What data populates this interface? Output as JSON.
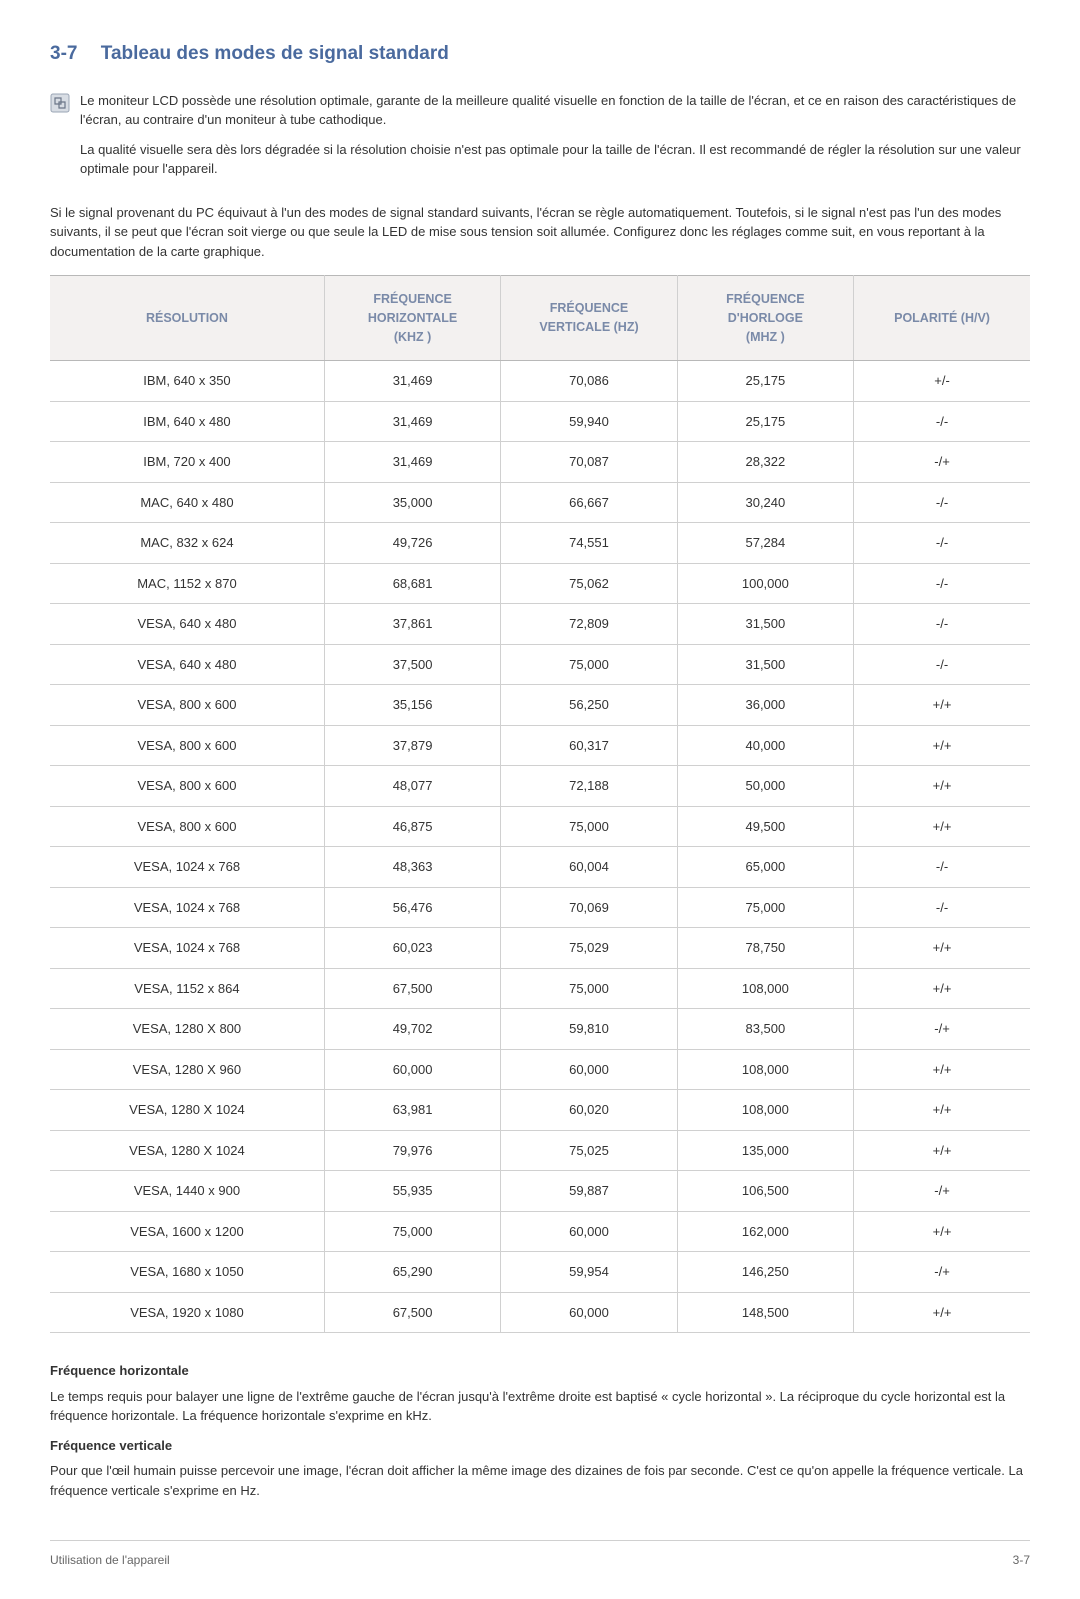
{
  "section": {
    "number": "3-7",
    "title": "Tableau des modes de signal standard"
  },
  "note": {
    "p1": "Le moniteur LCD possède une résolution optimale, garante de la meilleure qualité visuelle en fonction de la taille de l'écran, et ce en raison des caractéristiques de l'écran, au contraire d'un moniteur à tube cathodique.",
    "p2": "La qualité visuelle sera dès lors dégradée si la résolution choisie n'est pas optimale pour la taille de l'écran. Il est recommandé de régler la résolution sur une valeur optimale pour l'appareil."
  },
  "intro": "Si le signal provenant du PC équivaut à l'un des modes de signal standard suivants, l'écran se règle automatiquement. Toutefois, si le signal n'est pas l'un des modes suivants, il se peut que l'écran soit vierge ou que seule la LED de mise sous tension soit allumée. Configurez donc les réglages comme suit, en vous reportant à la documentation de la carte graphique.",
  "table": {
    "columns": [
      "RÉSOLUTION",
      "FRÉQUENCE HORIZONTALE (KHZ )",
      "FRÉQUENCE VERTICALE (HZ)",
      "FRÉQUENCE D'HORLOGE (MHZ )",
      "POLARITÉ (H/V)"
    ],
    "col_widths": [
      "28%",
      "18%",
      "18%",
      "18%",
      "18%"
    ],
    "header_bg": "#f3f1f0",
    "header_color": "#7a8aa8",
    "border_color": "#d0d0d0",
    "rows": [
      [
        "IBM, 640 x 350",
        "31,469",
        "70,086",
        "25,175",
        "+/-"
      ],
      [
        "IBM, 640 x 480",
        "31,469",
        "59,940",
        "25,175",
        "-/-"
      ],
      [
        "IBM, 720 x 400",
        "31,469",
        "70,087",
        "28,322",
        "-/+"
      ],
      [
        "MAC, 640 x 480",
        "35,000",
        "66,667",
        "30,240",
        "-/-"
      ],
      [
        "MAC, 832 x 624",
        "49,726",
        "74,551",
        "57,284",
        "-/-"
      ],
      [
        "MAC, 1152 x 870",
        "68,681",
        "75,062",
        "100,000",
        "-/-"
      ],
      [
        "VESA, 640 x 480",
        "37,861",
        "72,809",
        "31,500",
        "-/-"
      ],
      [
        "VESA, 640 x 480",
        "37,500",
        "75,000",
        "31,500",
        "-/-"
      ],
      [
        "VESA, 800 x 600",
        "35,156",
        "56,250",
        "36,000",
        "+/+"
      ],
      [
        "VESA, 800 x 600",
        "37,879",
        "60,317",
        "40,000",
        "+/+"
      ],
      [
        "VESA, 800 x 600",
        "48,077",
        "72,188",
        "50,000",
        "+/+"
      ],
      [
        "VESA, 800 x 600",
        "46,875",
        "75,000",
        "49,500",
        "+/+"
      ],
      [
        "VESA, 1024 x 768",
        "48,363",
        "60,004",
        "65,000",
        "-/-"
      ],
      [
        "VESA, 1024 x 768",
        "56,476",
        "70,069",
        "75,000",
        "-/-"
      ],
      [
        "VESA, 1024 x 768",
        "60,023",
        "75,029",
        "78,750",
        "+/+"
      ],
      [
        "VESA, 1152 x 864",
        "67,500",
        "75,000",
        "108,000",
        "+/+"
      ],
      [
        "VESA, 1280 X 800",
        "49,702",
        "59,810",
        "83,500",
        "-/+"
      ],
      [
        "VESA, 1280 X 960",
        "60,000",
        "60,000",
        "108,000",
        "+/+"
      ],
      [
        "VESA, 1280 X 1024",
        "63,981",
        "60,020",
        "108,000",
        "+/+"
      ],
      [
        "VESA, 1280 X 1024",
        "79,976",
        "75,025",
        "135,000",
        "+/+"
      ],
      [
        "VESA, 1440 x 900",
        "55,935",
        "59,887",
        "106,500",
        "-/+"
      ],
      [
        "VESA, 1600 x 1200",
        "75,000",
        "60,000",
        "162,000",
        "+/+"
      ],
      [
        "VESA, 1680 x 1050",
        "65,290",
        "59,954",
        "146,250",
        "-/+"
      ],
      [
        "VESA, 1920 x 1080",
        "67,500",
        "60,000",
        "148,500",
        "+/+"
      ]
    ]
  },
  "definitions": {
    "h_title": "Fréquence horizontale",
    "h_text": "Le temps requis pour balayer une ligne de l'extrême gauche de l'écran jusqu'à l'extrême droite est baptisé « cycle horizontal ». La réciproque du cycle horizontal est la fréquence horizontale. La fréquence horizontale s'exprime en kHz.",
    "v_title": "Fréquence verticale",
    "v_text": "Pour que l'œil humain puisse percevoir une image, l'écran doit afficher la même image des dizaines de fois par seconde. C'est ce qu'on appelle la fréquence verticale. La fréquence verticale s'exprime en Hz."
  },
  "footer": {
    "left": "Utilisation de l'appareil",
    "right": "3-7"
  },
  "colors": {
    "title": "#4a6a9e",
    "body": "#333333",
    "footer": "#666666"
  }
}
